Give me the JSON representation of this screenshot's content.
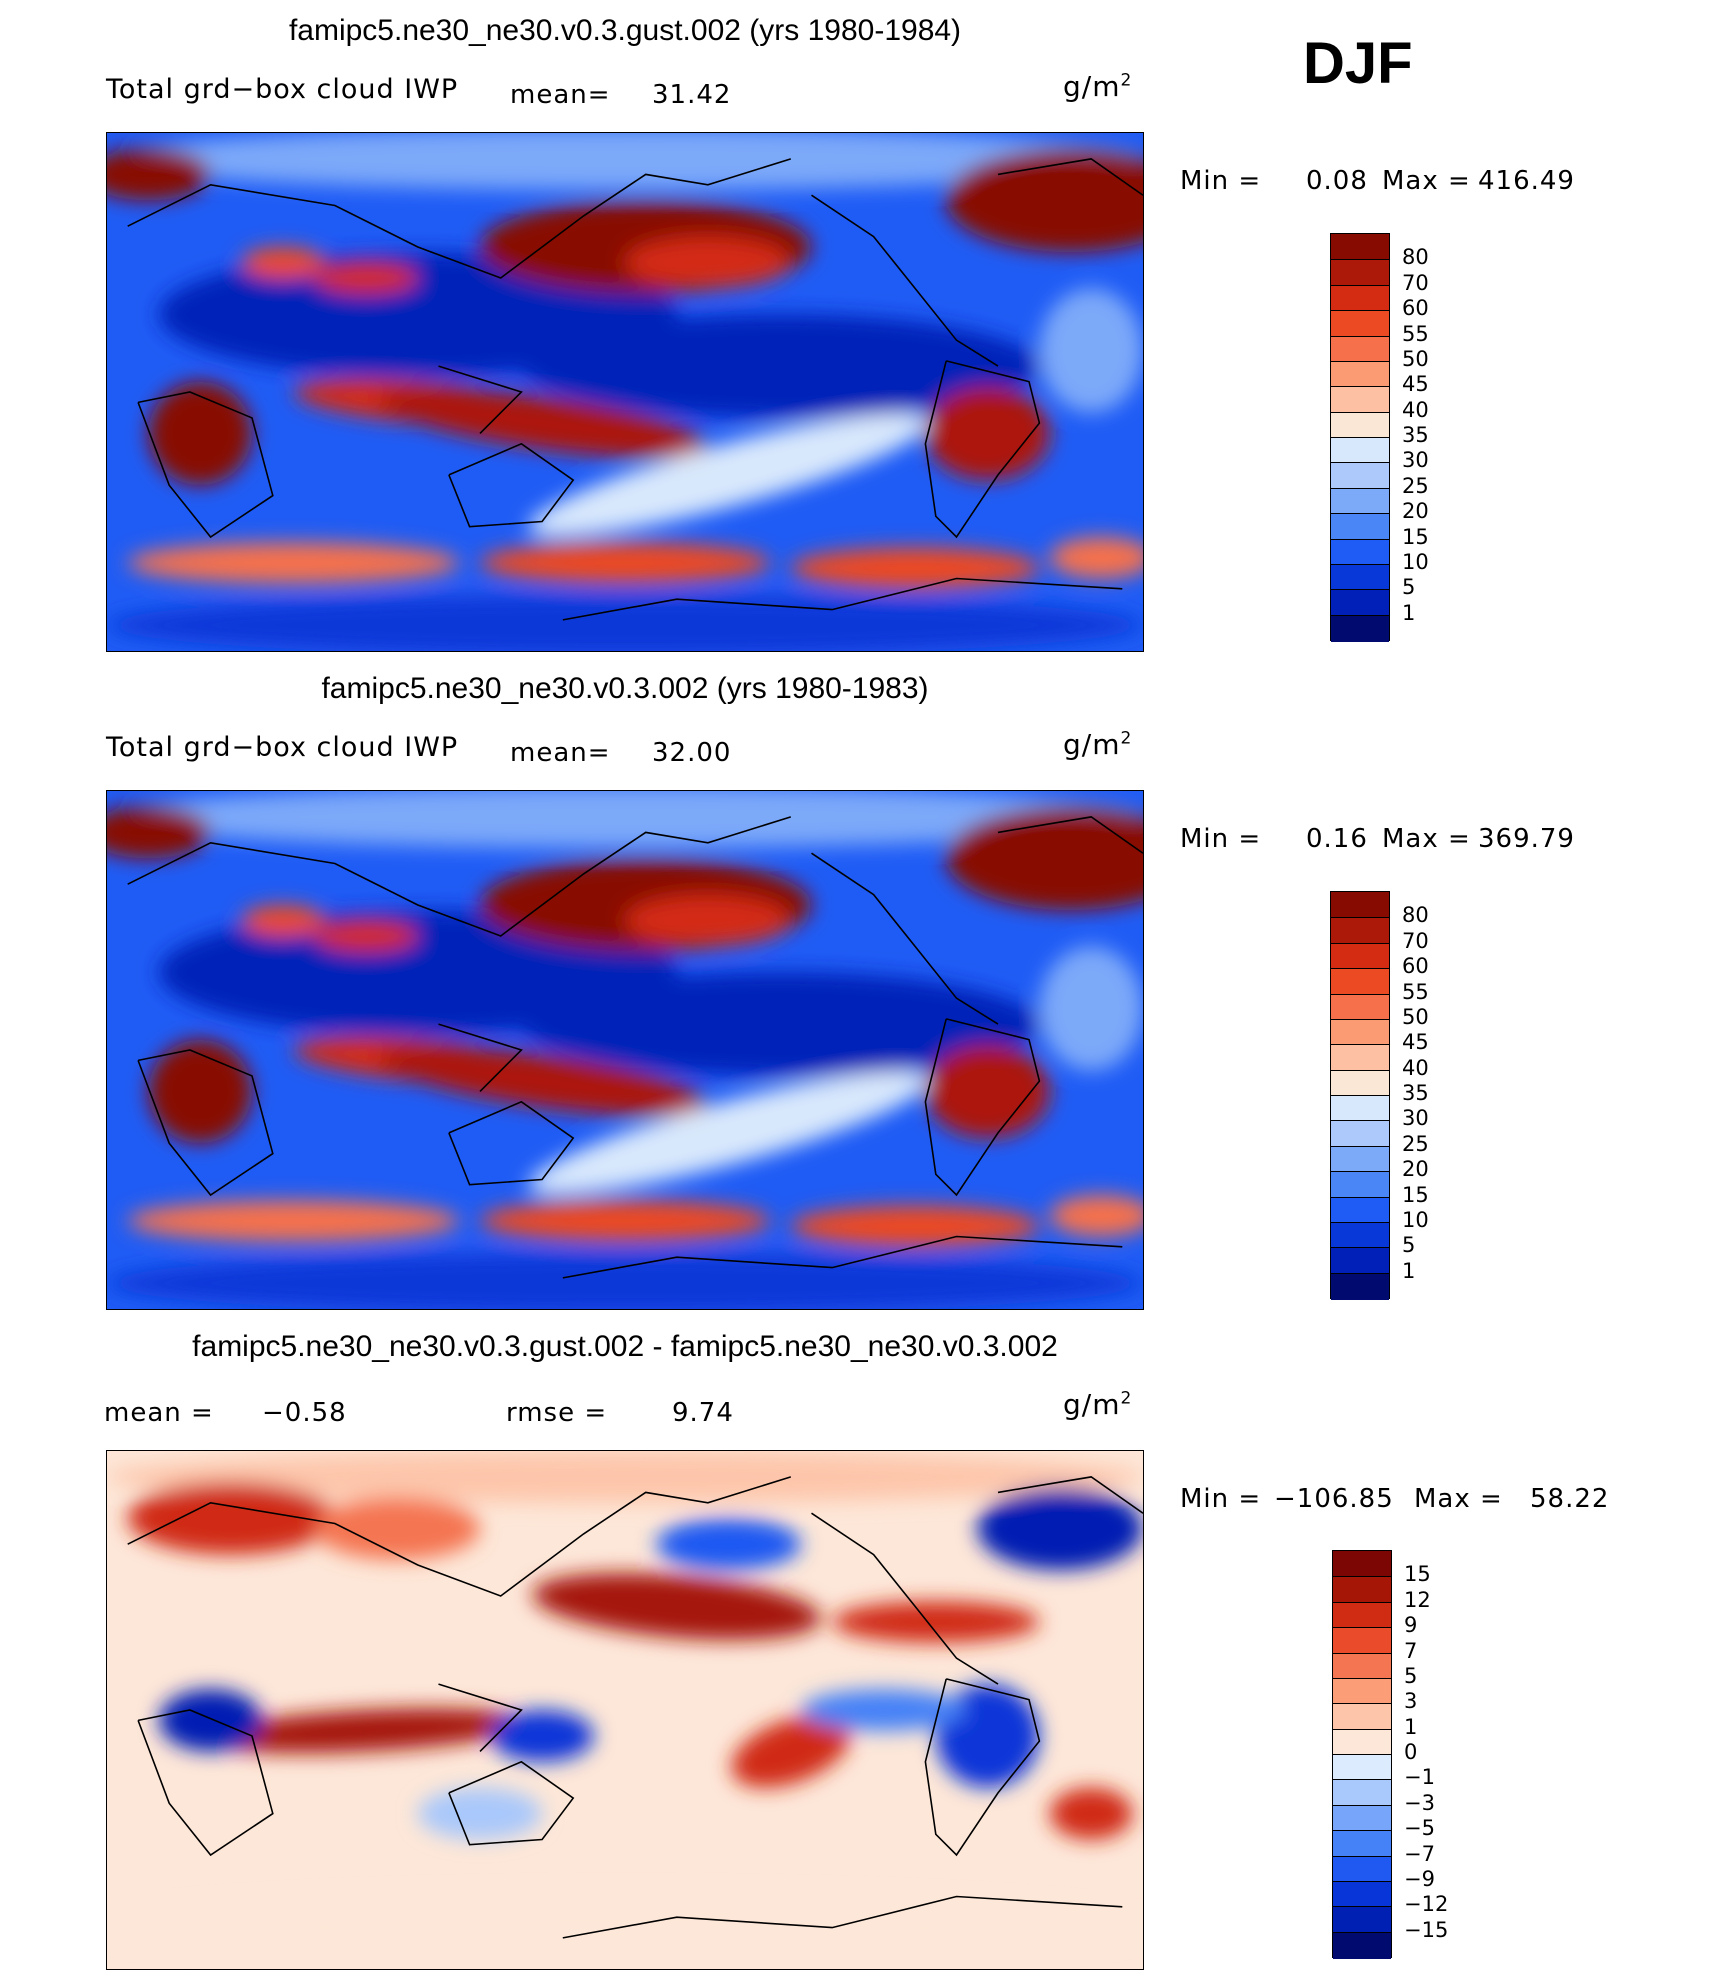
{
  "season": "DJF",
  "panels": [
    {
      "id": "p1",
      "title": "famipc5.ne30_ne30.v0.3.gust.002 (yrs 1980-1984)",
      "left_label": "Total grd−box cloud IWP",
      "mean_label": "mean=",
      "mean_value": "31.42",
      "units": "g/m",
      "units_sup": "2",
      "minmax": {
        "min_label": "Min  =",
        "min_value": "0.08",
        "max_label": "Max  =",
        "max_value": "416.49"
      },
      "colors": {
        "seq": [
          "#000a6f",
          "#0020b8",
          "#0838d8",
          "#1f5cf5",
          "#4b86f7",
          "#7da9f9",
          "#adc9fb",
          "#d8e8fc",
          "#fbe7d6",
          "#fdc0a3",
          "#fb9b73",
          "#f6714b",
          "#ec4a23",
          "#d32c12",
          "#ac1908",
          "#880b02"
        ],
        "div": [
          "#000a6f",
          "#001fb3",
          "#0835d8",
          "#1f59f2",
          "#4581f7",
          "#77a5f9",
          "#a9c8fb",
          "#dcebfd",
          "#fde7d8",
          "#fdc6ab",
          "#fb9e78",
          "#f47551",
          "#ea4b2a",
          "#d02c13",
          "#a51607",
          "#7c0603"
        ]
      }
    },
    {
      "id": "p2",
      "title": "famipc5.ne30_ne30.v0.3.002 (yrs 1980-1983)",
      "left_label": "Total grd−box cloud IWP",
      "mean_label": "mean=",
      "mean_value": "32.00",
      "units": "g/m",
      "units_sup": "2",
      "minmax": {
        "min_label": "Min  =",
        "min_value": "0.16",
        "max_label": "Max  =",
        "max_value": "369.79"
      }
    },
    {
      "id": "p3",
      "title": "famipc5.ne30_ne30.v0.3.gust.002 - famipc5.ne30_ne30.v0.3.002",
      "mean_label": "mean  =",
      "mean_value": "−0.58",
      "rmse_label": "rmse  =",
      "rmse_value": "9.74",
      "units": "g/m",
      "units_sup": "2",
      "minmax": {
        "min_label": "Min  =",
        "min_value": "−106.85",
        "max_label": "Max  =",
        "max_value": "58.22"
      }
    }
  ],
  "chart_data": [
    {
      "type": "heatmap",
      "title": "famipc5.ne30_ne30.v0.3.gust.002 (yrs 1980-1984)",
      "subtitle": "Total grd-box cloud IWP",
      "units": "g/m2",
      "mean": 31.42,
      "min": 0.08,
      "max": 416.49,
      "colorbar_levels": [
        "80",
        "70",
        "60",
        "55",
        "50",
        "45",
        "40",
        "35",
        "30",
        "25",
        "20",
        "15",
        "10",
        "5",
        "1"
      ],
      "colors": [
        "#880b02",
        "#ac1908",
        "#d32c12",
        "#ec4a23",
        "#f6714b",
        "#fb9b73",
        "#fdc0a3",
        "#fbe7d6",
        "#d8e8fc",
        "#adc9fb",
        "#7da9f9",
        "#4b86f7",
        "#1f5cf5",
        "#0838d8",
        "#0020b8",
        "#000a6f"
      ]
    },
    {
      "type": "heatmap",
      "title": "famipc5.ne30_ne30.v0.3.002 (yrs 1980-1983)",
      "subtitle": "Total grd-box cloud IWP",
      "units": "g/m2",
      "mean": 32.0,
      "min": 0.16,
      "max": 369.79,
      "colorbar_levels": [
        "80",
        "70",
        "60",
        "55",
        "50",
        "45",
        "40",
        "35",
        "30",
        "25",
        "20",
        "15",
        "10",
        "5",
        "1"
      ],
      "colors": [
        "#880b02",
        "#ac1908",
        "#d32c12",
        "#ec4a23",
        "#f6714b",
        "#fb9b73",
        "#fdc0a3",
        "#fbe7d6",
        "#d8e8fc",
        "#adc9fb",
        "#7da9f9",
        "#4b86f7",
        "#1f5cf5",
        "#0838d8",
        "#0020b8",
        "#000a6f"
      ]
    },
    {
      "type": "heatmap",
      "title": "famipc5.ne30_ne30.v0.3.gust.002 - famipc5.ne30_ne30.v0.3.002",
      "units": "g/m2",
      "mean": -0.58,
      "rmse": 9.74,
      "min": -106.85,
      "max": 58.22,
      "colorbar_levels": [
        "15",
        "12",
        "9",
        "7",
        "5",
        "3",
        "1",
        "0",
        "−1",
        "−3",
        "−5",
        "−7",
        "−9",
        "−12",
        "−15"
      ],
      "colors": [
        "#7c0603",
        "#a51607",
        "#d02c13",
        "#ea4b2a",
        "#f47551",
        "#fb9e78",
        "#fdc6ab",
        "#fde7d8",
        "#dcebfd",
        "#a9c8fb",
        "#77a5f9",
        "#4581f7",
        "#1f59f2",
        "#0835d8",
        "#001fb3",
        "#000a6f"
      ]
    }
  ]
}
